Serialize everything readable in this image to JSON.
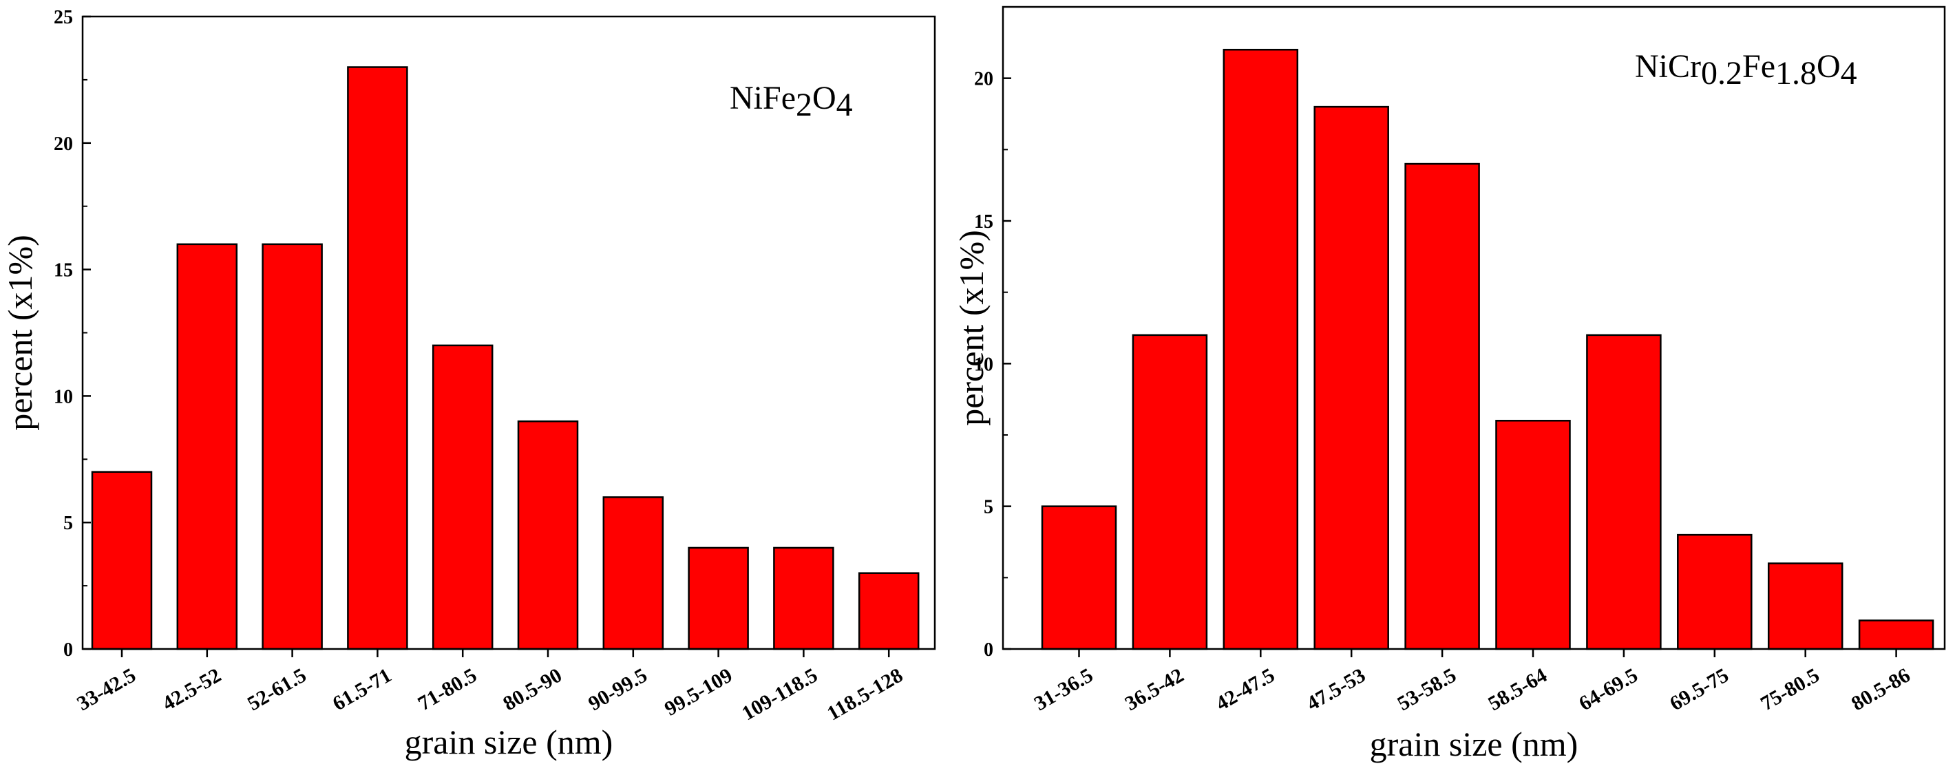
{
  "chart_data": [
    {
      "type": "bar",
      "categories": [
        "33-42.5",
        "42.5-52",
        "52-61.5",
        "61.5-71",
        "71-80.5",
        "80.5-90",
        "90-99.5",
        "99.5-109",
        "109-118.5",
        "118.5-128"
      ],
      "values": [
        7,
        16,
        16,
        23,
        12,
        9,
        6,
        4,
        4,
        3
      ],
      "title": "",
      "xlabel": "grain size (nm)",
      "ylabel": "percent  (x1%)",
      "ylim": [
        0,
        25
      ],
      "yticks": [
        0,
        5,
        10,
        15,
        20,
        25
      ],
      "bar_color": "#ff0000",
      "grid": false,
      "annotation": {
        "parts": [
          {
            "t": "NiFe",
            "sub": false
          },
          {
            "t": "2",
            "sub": true
          },
          {
            "t": "O",
            "sub": false
          },
          {
            "t": "4",
            "sub": true
          }
        ]
      }
    },
    {
      "type": "bar",
      "categories": [
        "31-36.5",
        "36.5-42",
        "42-47.5",
        "47.5-53",
        "53-58.5",
        "58.5-64",
        "64-69.5",
        "69.5-75",
        "75-80.5",
        "80.5-86"
      ],
      "values": [
        5,
        11,
        21,
        19,
        17,
        8,
        11,
        4,
        3,
        1
      ],
      "title": "",
      "xlabel": "grain size (nm)",
      "ylabel": "percent  (x1%)",
      "ylim": [
        0,
        22.5
      ],
      "yticks": [
        0,
        5,
        10,
        15,
        20
      ],
      "bar_color": "#ff0000",
      "grid": false,
      "annotation": {
        "parts": [
          {
            "t": "NiCr",
            "sub": false
          },
          {
            "t": "0.2",
            "sub": true
          },
          {
            "t": "Fe",
            "sub": false
          },
          {
            "t": "1.8",
            "sub": true
          },
          {
            "t": "O",
            "sub": false
          },
          {
            "t": "4",
            "sub": true
          }
        ]
      }
    }
  ]
}
